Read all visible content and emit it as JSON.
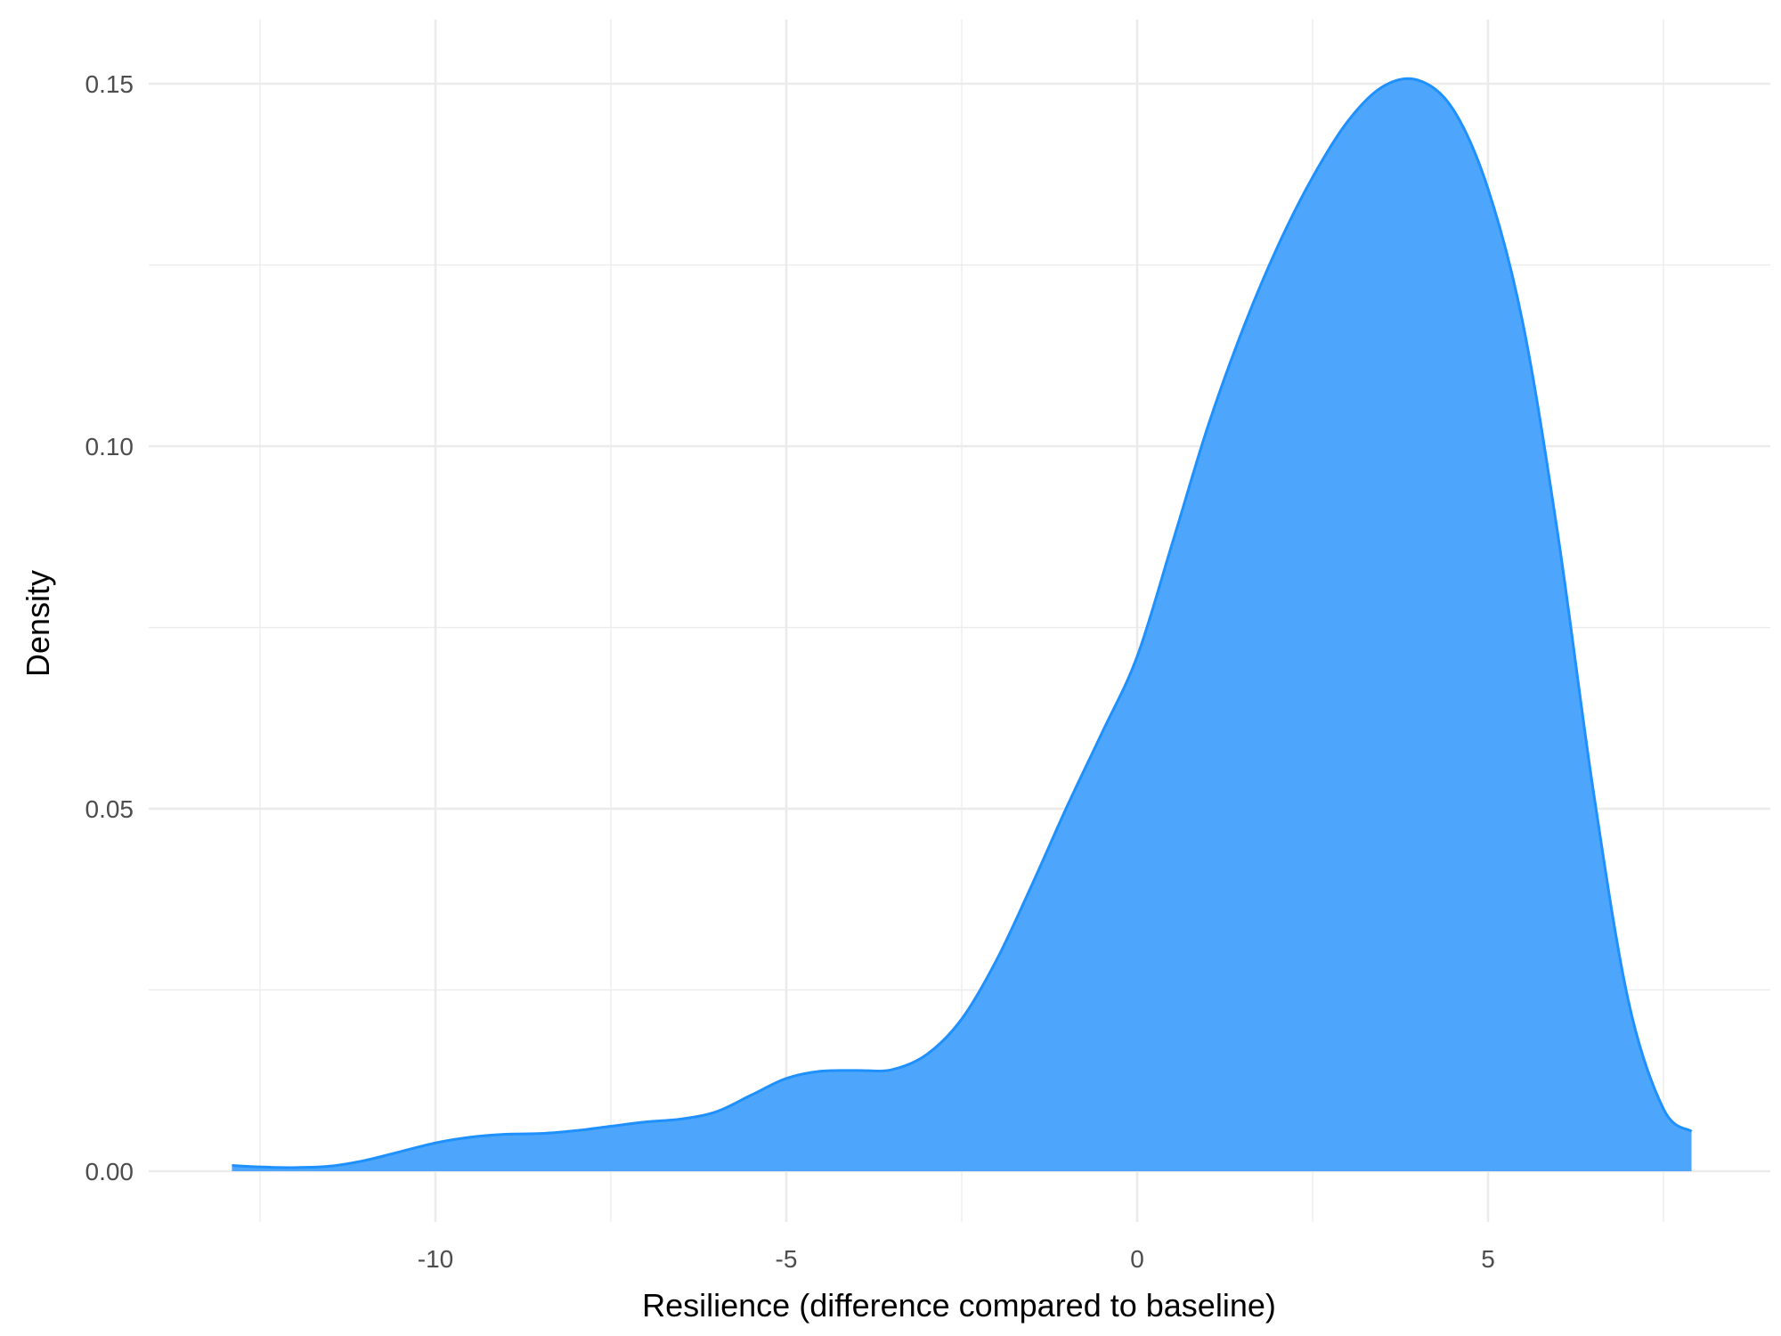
{
  "chart_data": {
    "type": "area",
    "title": "",
    "xlabel": "Resilience (difference compared to baseline)",
    "ylabel": "Density",
    "xlim": [
      -13,
      8
    ],
    "ylim": [
      0,
      0.15
    ],
    "x_ticks": [
      -10,
      -5,
      0,
      5
    ],
    "x_tick_labels": [
      "-10",
      "-5",
      "0",
      "5"
    ],
    "y_ticks": [
      0.0,
      0.05,
      0.1,
      0.15
    ],
    "y_tick_labels": [
      "0.00",
      "0.05",
      "0.10",
      "0.15"
    ],
    "x_minor_ticks": [
      -12.5,
      -7.5,
      -2.5,
      2.5,
      7.5
    ],
    "y_minor_ticks": [
      0.025,
      0.075,
      0.125
    ],
    "grid": true,
    "legend": "none",
    "fill_color": "#4DA6FB",
    "line_color": "#1E90FF",
    "series": [
      {
        "x": [
          -12.9,
          -12.5,
          -12,
          -11.5,
          -11,
          -10.5,
          -10,
          -9.5,
          -9,
          -8.5,
          -8,
          -7.5,
          -7,
          -6.5,
          -6,
          -5.5,
          -5,
          -4.5,
          -4,
          -3.5,
          -3,
          -2.5,
          -2,
          -1.5,
          -1,
          -0.5,
          0,
          0.5,
          1,
          1.5,
          2,
          2.5,
          3,
          3.5,
          4,
          4.5,
          5,
          5.5,
          6,
          6.5,
          7,
          7.5,
          7.9
        ],
        "y": [
          0.0008,
          0.0006,
          0.0005,
          0.0007,
          0.0015,
          0.0027,
          0.0039,
          0.0047,
          0.0051,
          0.0052,
          0.0056,
          0.0062,
          0.0068,
          0.0072,
          0.0082,
          0.0105,
          0.0128,
          0.0138,
          0.0139,
          0.014,
          0.0161,
          0.021,
          0.0292,
          0.0395,
          0.0503,
          0.0605,
          0.071,
          0.0866,
          0.1025,
          0.116,
          0.1275,
          0.1371,
          0.1448,
          0.1496,
          0.1505,
          0.1465,
          0.1355,
          0.1168,
          0.0875,
          0.0525,
          0.0235,
          0.0086,
          0.0055
        ]
      }
    ]
  }
}
